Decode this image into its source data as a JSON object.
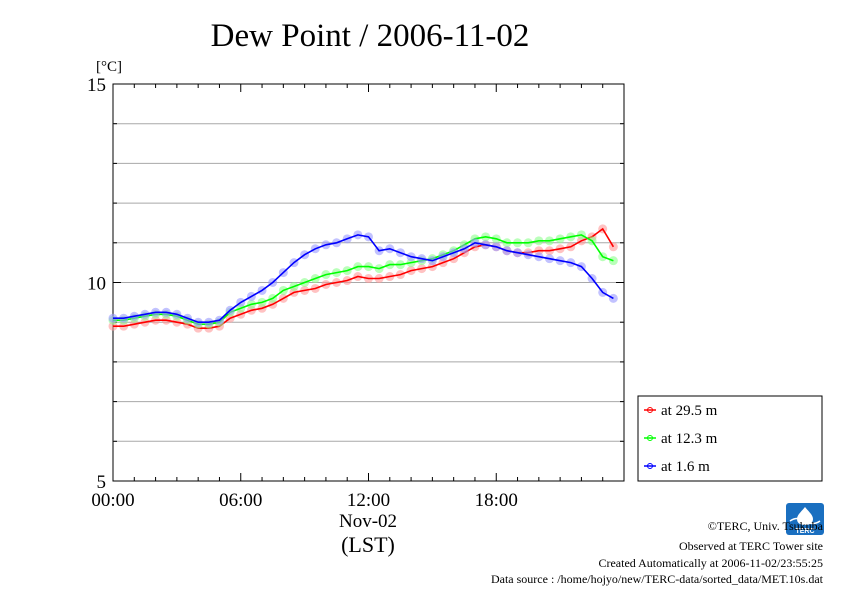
{
  "chart_data": {
    "type": "line",
    "title": "Dew Point / 2006-11-02",
    "ylabel": "[°C]",
    "xlabel": "(LST)",
    "date_label": "Nov-02",
    "xlim": [
      0,
      24
    ],
    "ylim": [
      5,
      15
    ],
    "x_ticks": [
      {
        "value": 0,
        "label": "00:00"
      },
      {
        "value": 6,
        "label": "06:00"
      },
      {
        "value": 12,
        "label": "12:00"
      },
      {
        "value": 18,
        "label": "18:00"
      }
    ],
    "y_ticks": [
      {
        "value": 5,
        "label": "5"
      },
      {
        "value": 10,
        "label": "10"
      },
      {
        "value": 15,
        "label": "15"
      }
    ],
    "y_grid": [
      6,
      7,
      8,
      9,
      10,
      11,
      12,
      13,
      14
    ],
    "grid": true,
    "legend_position": "bottom-right outside",
    "x": [
      0,
      0.5,
      1,
      1.5,
      2,
      2.5,
      3,
      3.5,
      4,
      4.5,
      5,
      5.5,
      6,
      6.5,
      7,
      7.5,
      8,
      8.5,
      9,
      9.5,
      10,
      10.5,
      11,
      11.5,
      12,
      12.5,
      13,
      13.5,
      14,
      14.5,
      15,
      15.5,
      16,
      16.5,
      17,
      17.5,
      18,
      18.5,
      19,
      19.5,
      20,
      20.5,
      21,
      21.5,
      22,
      22.5,
      23,
      23.5
    ],
    "series": [
      {
        "name": "at 29.5 m",
        "color": "#ff0000",
        "values": [
          8.9,
          8.9,
          8.95,
          9.0,
          9.05,
          9.05,
          9.0,
          8.95,
          8.85,
          8.85,
          8.9,
          9.1,
          9.2,
          9.3,
          9.35,
          9.45,
          9.6,
          9.75,
          9.8,
          9.85,
          9.95,
          10.0,
          10.05,
          10.15,
          10.1,
          10.1,
          10.15,
          10.2,
          10.3,
          10.35,
          10.4,
          10.5,
          10.6,
          10.75,
          10.9,
          10.95,
          10.9,
          10.8,
          10.75,
          10.75,
          10.8,
          10.8,
          10.85,
          10.9,
          11.05,
          11.15,
          11.35,
          10.9
        ]
      },
      {
        "name": "at 12.3 m",
        "color": "#00ff00",
        "values": [
          9.05,
          9.05,
          9.1,
          9.15,
          9.2,
          9.2,
          9.15,
          9.05,
          8.95,
          8.95,
          9.0,
          9.25,
          9.35,
          9.45,
          9.5,
          9.6,
          9.8,
          9.9,
          10.0,
          10.1,
          10.2,
          10.25,
          10.3,
          10.4,
          10.4,
          10.35,
          10.45,
          10.45,
          10.5,
          10.55,
          10.6,
          10.7,
          10.8,
          10.95,
          11.1,
          11.15,
          11.1,
          11.0,
          11.0,
          11.0,
          11.05,
          11.05,
          11.1,
          11.15,
          11.2,
          11.05,
          10.65,
          10.55
        ]
      },
      {
        "name": "at 1.6 m",
        "color": "#0000ff",
        "values": [
          9.1,
          9.1,
          9.15,
          9.2,
          9.25,
          9.25,
          9.2,
          9.1,
          9.0,
          9.0,
          9.05,
          9.3,
          9.5,
          9.65,
          9.8,
          10.0,
          10.25,
          10.5,
          10.7,
          10.85,
          10.95,
          11.0,
          11.1,
          11.2,
          11.15,
          10.8,
          10.85,
          10.75,
          10.65,
          10.6,
          10.55,
          10.65,
          10.75,
          10.85,
          11.0,
          10.95,
          10.9,
          10.8,
          10.75,
          10.7,
          10.65,
          10.6,
          10.55,
          10.5,
          10.4,
          10.1,
          9.75,
          9.6
        ]
      }
    ]
  },
  "credits": {
    "copyright": "©TERC, Univ. Tsukuba",
    "observed": "Observed at TERC Tower site",
    "created": "Created Automatically at 2006-11-02/23:55:25",
    "source": "Data source : /home/hojyo/new/TERC-data/sorted_data/MET.10s.dat"
  },
  "logo": {
    "text": "TERC",
    "color": "#1a6fc0"
  }
}
